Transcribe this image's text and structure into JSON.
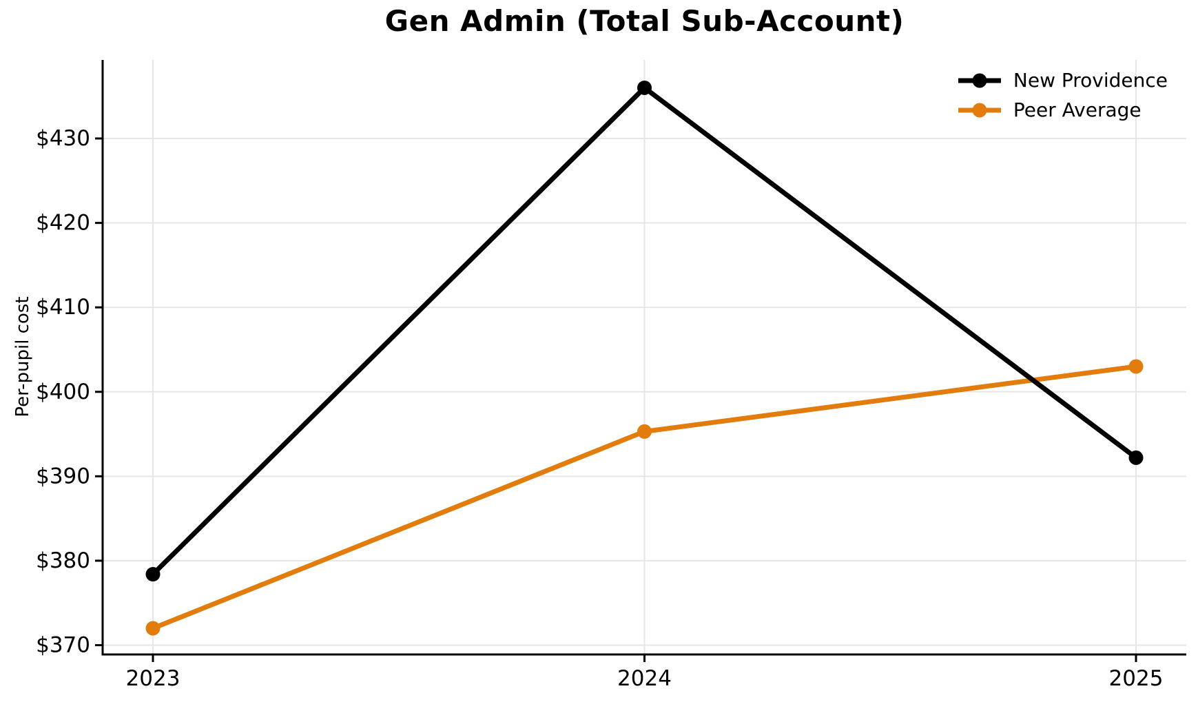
{
  "chart_data": {
    "type": "line",
    "title": "Gen Admin (Total Sub-Account)",
    "xlabel": "",
    "ylabel": "Per-pupil cost",
    "categories": [
      "2023",
      "2024",
      "2025"
    ],
    "series": [
      {
        "name": "New Providence",
        "values": [
          378.4,
          436.0,
          392.2
        ],
        "color": "#000000"
      },
      {
        "name": "Peer Average",
        "values": [
          372.0,
          395.3,
          403.0
        ],
        "color": "#e17c0d"
      }
    ],
    "yticks": [
      370,
      380,
      390,
      400,
      410,
      420,
      430
    ],
    "ytick_prefix": "$",
    "ylim": [
      368.9,
      439.3
    ],
    "grid": true,
    "gridline_color": "#e6e6e6",
    "axis_color": "#000000",
    "legend_position": "upper right"
  }
}
